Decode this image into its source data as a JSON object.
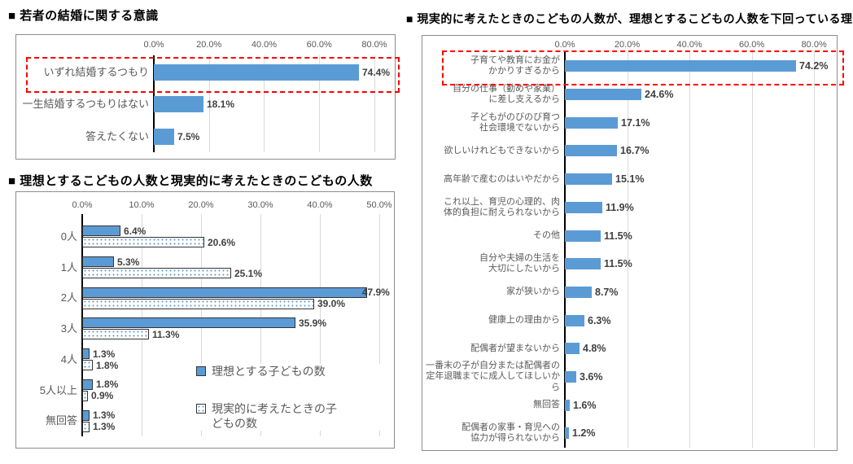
{
  "page": {
    "background": "#ffffff"
  },
  "colors": {
    "bar_blue": "#5b9bd5",
    "bar_border": "#333333",
    "gridline": "#d9d9d9",
    "axis_line": "#000000",
    "chart_border": "#8c8c8c",
    "highlight_red": "#ff0000",
    "tick_text": "#595959",
    "category_text": "#595959",
    "data_label_text": "#404040",
    "title_text": "#000000"
  },
  "chart_data": [
    {
      "id": "marriage-intentions",
      "type": "bar",
      "orientation": "horizontal",
      "title": "■ 若者の結婚に関する意識",
      "categories": [
        "いずれ結婚するつもり",
        "一生結婚するつもりはない",
        "答えたくない"
      ],
      "values": [
        74.4,
        18.1,
        7.5
      ],
      "data_labels": [
        "74.4%",
        "18.1%",
        "7.5%"
      ],
      "tick_values": [
        0,
        20,
        40,
        60,
        80
      ],
      "tick_labels": [
        "0.0%",
        "20.0%",
        "40.0%",
        "60.0%",
        "80.0%"
      ],
      "xlim": [
        0,
        86
      ],
      "grid": true,
      "legend_position": "none",
      "highlight_row": 0
    },
    {
      "id": "children-ideal-vs-realistic",
      "type": "bar",
      "orientation": "horizontal",
      "title": "■ 理想とするこどもの人数と現実的に考えたときのこどもの人数",
      "categories": [
        "0人",
        "1人",
        "2人",
        "3人",
        "4人",
        "5人以上",
        "無回答"
      ],
      "series": [
        {
          "name": "理想とする子どもの数",
          "fill": "solid",
          "values": [
            6.4,
            5.3,
            47.9,
            35.9,
            1.3,
            1.8,
            1.3
          ],
          "data_labels": [
            "6.4%",
            "5.3%",
            "47.9%",
            "35.9%",
            "1.3%",
            "1.8%",
            "1.3%"
          ]
        },
        {
          "name": "現実的に考えたときの子\nどもの数",
          "fill": "dotted",
          "values": [
            20.6,
            25.1,
            39.0,
            11.3,
            1.8,
            0.9,
            1.3
          ],
          "data_labels": [
            "20.6%",
            "25.1%",
            "39.0%",
            "11.3%",
            "1.8%",
            "0.9%",
            "1.3%"
          ]
        }
      ],
      "tick_values": [
        0,
        10,
        20,
        30,
        40,
        50
      ],
      "tick_labels": [
        "0.0%",
        "10.0%",
        "20.0%",
        "30.0%",
        "40.0%",
        "50.0%"
      ],
      "xlim": [
        0,
        52
      ],
      "grid": true,
      "legend_position": "inside-bottom-right"
    },
    {
      "id": "reasons-realistic-below-ideal",
      "type": "bar",
      "orientation": "horizontal",
      "title": "■ 現実的に考えたときのこどもの人数が、理想とするこどもの人数を下回っている理由",
      "categories": [
        "子育てや教育にお金が\nかかりすぎるから",
        "自分の仕事（勤めや家業）\nに差し支えるから",
        "子どもがのびのび育つ\n社会環境でないから",
        "欲しいけれどもできないから",
        "高年齢で産むのはいやだから",
        "これ以上、育児の心理的、肉\n体的負担に耐えられないから",
        "その他",
        "自分や夫婦の生活を\n大切にしたいから",
        "家が狭いから",
        "健康上の理由から",
        "配偶者が望まないから",
        "一番末の子が自分または配偶者の\n定年退職までに成人してほしいから",
        "無回答",
        "配偶者の家事・育児への\n協力が得られないから"
      ],
      "values": [
        74.2,
        24.6,
        17.1,
        16.7,
        15.1,
        11.9,
        11.5,
        11.5,
        8.7,
        6.3,
        4.8,
        3.6,
        1.6,
        1.2
      ],
      "data_labels": [
        "74.2%",
        "24.6%",
        "17.1%",
        "16.7%",
        "15.1%",
        "11.9%",
        "11.5%",
        "11.5%",
        "8.7%",
        "6.3%",
        "4.8%",
        "3.6%",
        "1.6%",
        "1.2%"
      ],
      "tick_values": [
        0,
        20,
        40,
        60,
        80
      ],
      "tick_labels": [
        "0.0%",
        "20.0%",
        "40.0%",
        "60.0%",
        "80.0%"
      ],
      "xlim": [
        0,
        87
      ],
      "grid": true,
      "legend_position": "none",
      "highlight_row": 0
    }
  ]
}
